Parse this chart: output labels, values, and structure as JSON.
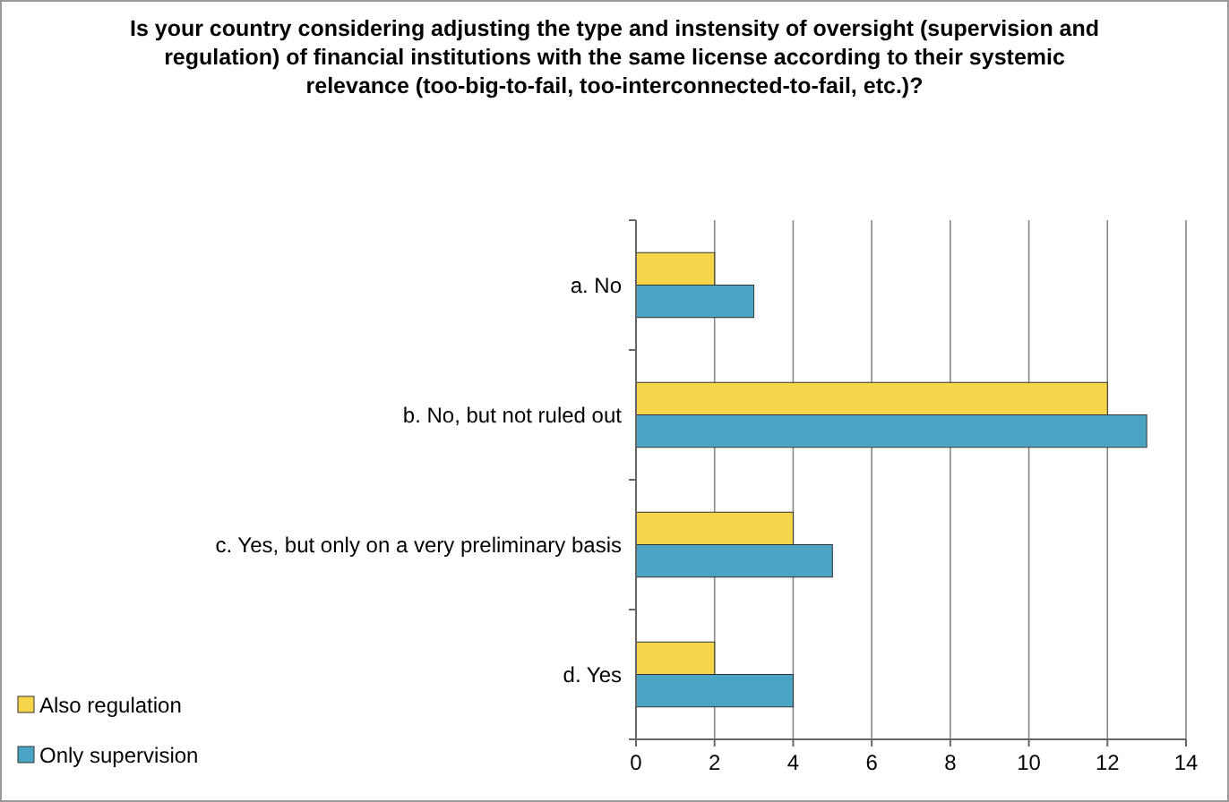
{
  "chart_data": {
    "type": "bar",
    "orientation": "horizontal",
    "title": "Is your country considering adjusting the type and instensity of oversight (supervision and regulation) of financial institutions with the same license according to their systemic relevance (too-big-to-fail, too-interconnected-to-fail, etc.)?",
    "categories": [
      "a. No",
      "b. No, but not ruled out",
      "c. Yes, but only on a very preliminary  basis",
      "d. Yes"
    ],
    "series": [
      {
        "name": "Also regulation",
        "color": "#f7d54a",
        "values": [
          2,
          12,
          4,
          2
        ]
      },
      {
        "name": "Only supervision",
        "color": "#4aa5c4",
        "values": [
          3,
          13,
          5,
          4
        ]
      }
    ],
    "xlim": [
      0,
      14
    ],
    "xticks": [
      0,
      2,
      4,
      6,
      8,
      10,
      12,
      14
    ],
    "grid": "x",
    "legend": "bottom left"
  }
}
